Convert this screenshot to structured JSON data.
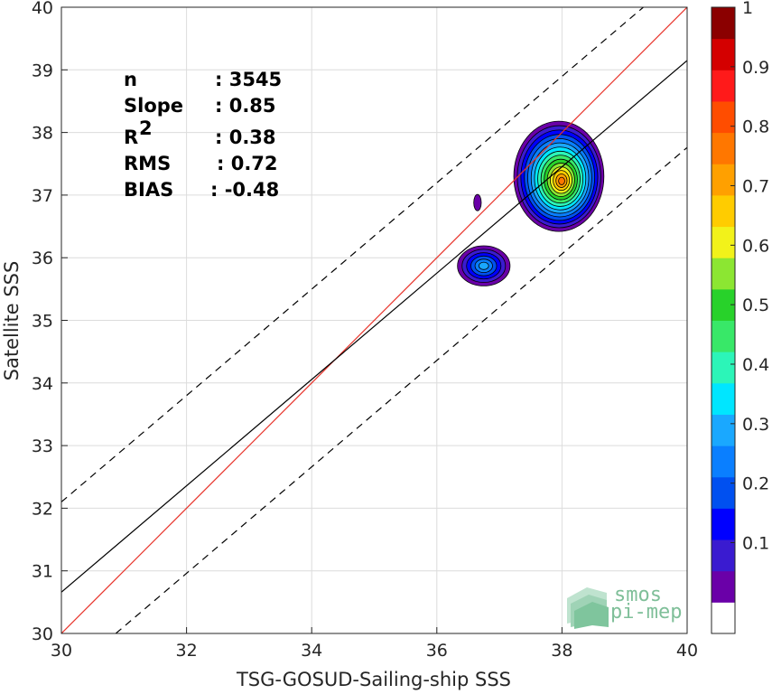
{
  "chart_data": {
    "type": "contour",
    "xlabel": "TSG-GOSUD-Sailing-ship SSS",
    "ylabel": "Satellite SSS",
    "xlim": [
      30,
      40
    ],
    "ylim": [
      30,
      40
    ],
    "xticks": [
      "30",
      "32",
      "34",
      "36",
      "38",
      "40"
    ],
    "yticks": [
      "30",
      "31",
      "32",
      "33",
      "34",
      "35",
      "36",
      "37",
      "38",
      "39",
      "40"
    ],
    "grid": true,
    "stats": [
      {
        "label": "n",
        "value": ": 3545"
      },
      {
        "label": "Slope",
        "value": ": 0.85"
      },
      {
        "label": "R",
        "value": ": 0.38"
      },
      {
        "label": "RMS",
        "value": ": 0.72"
      },
      {
        "label": "BIAS",
        "value": ": -0.48"
      }
    ],
    "r_superscript": "2",
    "lines": [
      {
        "kind": "one-to-one",
        "color": "#e8332a",
        "style": "solid",
        "x": [
          30,
          40
        ],
        "y": [
          30,
          40
        ]
      },
      {
        "kind": "regression",
        "color": "#000000",
        "style": "solid",
        "x": [
          30,
          40
        ],
        "y": [
          30.66,
          39.15
        ]
      },
      {
        "kind": "upper-bound",
        "color": "#000000",
        "style": "dashed",
        "x": [
          30,
          39.3
        ],
        "y": [
          32.1,
          40
        ]
      },
      {
        "kind": "lower-bound",
        "color": "#000000",
        "style": "dashed",
        "x": [
          30.87,
          40
        ],
        "y": [
          30,
          37.76
        ]
      }
    ],
    "density_blobs": [
      {
        "name": "main",
        "center": [
          37.95,
          37.3
        ],
        "rx": 0.72,
        "ry": 0.88,
        "levels": 15
      },
      {
        "name": "secondary",
        "center": [
          36.75,
          35.87
        ],
        "rx": 0.42,
        "ry": 0.32,
        "levels": 6
      },
      {
        "name": "isolated",
        "center": [
          36.65,
          36.88
        ],
        "rx": 0.06,
        "ry": 0.13,
        "levels": 1
      }
    ],
    "colorbar": {
      "range": [
        0,
        1
      ],
      "ticks": [
        "0.1",
        "0.2",
        "0.3",
        "0.4",
        "0.5",
        "0.6",
        "0.7",
        "0.8",
        "0.9",
        "1"
      ],
      "colors": [
        "#ffffff",
        "#6a00a8",
        "#3a1bd0",
        "#0000ff",
        "#0050f0",
        "#0a7fff",
        "#1aa8ff",
        "#00e6ff",
        "#2cf5b8",
        "#38e868",
        "#28d22a",
        "#8ce632",
        "#f2f21a",
        "#ffcc00",
        "#ffa000",
        "#ff7700",
        "#ff4d00",
        "#ff1a1a",
        "#d40000",
        "#8b0000"
      ]
    }
  },
  "logo": {
    "line1": "smos",
    "line2": "pi-mep"
  }
}
